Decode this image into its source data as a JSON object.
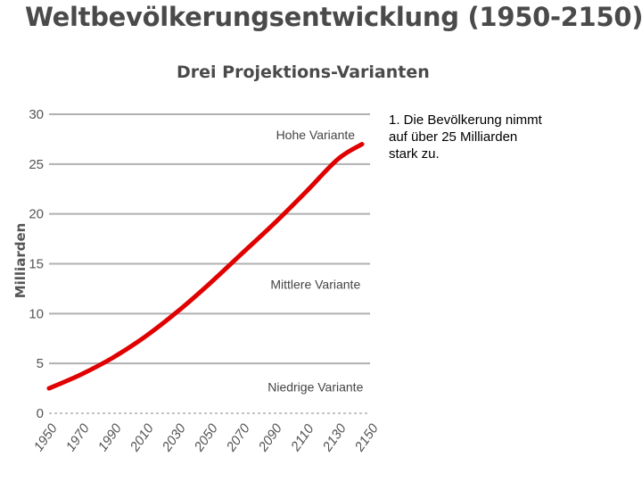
{
  "title": "Weltbevölkerungsentwicklung (1950-2150):",
  "subtitle": "Drei Projektions-Varianten",
  "note": "1. Die Bevölkerung nimmt auf über 25 Milliarden stark zu.",
  "colors": {
    "line": "#e00000",
    "grid": "#b0b0b0",
    "text": "#4a4a4a"
  },
  "chart_data": {
    "type": "line",
    "title": "Drei Projektions-Varianten",
    "ylabel": "Milliarden",
    "xlabel": "",
    "xlim": [
      1950,
      2150
    ],
    "ylim": [
      0,
      30
    ],
    "x_ticks": [
      1950,
      1970,
      1990,
      2010,
      2030,
      2050,
      2070,
      2090,
      2110,
      2130,
      2150
    ],
    "y_ticks": [
      0,
      5,
      10,
      15,
      20,
      25,
      30
    ],
    "grid": true,
    "series": [
      {
        "name": "",
        "color": "#e00000",
        "x": [
          1950,
          1970,
          1990,
          2010,
          2030,
          2050,
          2070,
          2090,
          2110,
          2130,
          2145
        ],
        "y": [
          2.5,
          3.9,
          5.6,
          7.7,
          10.2,
          13.0,
          16.0,
          19.0,
          22.2,
          25.5,
          27.0
        ]
      }
    ],
    "annotations": [
      {
        "text": "Hohe Variante",
        "x": 2116,
        "y": 27.5
      },
      {
        "text": "Mittlere Variante",
        "x": 2116,
        "y": 12.5
      },
      {
        "text": "Niedrige Variante",
        "x": 2116,
        "y": 2.2
      }
    ]
  }
}
